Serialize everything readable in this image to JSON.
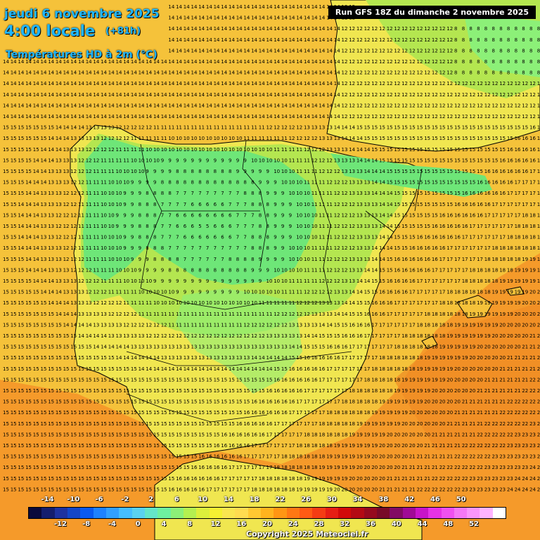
{
  "header": {
    "date": "jeudi 6 novembre 2025",
    "hour": "4:00 locale",
    "lead": "(+81h)",
    "parameter": "Températures HD à 2m (°C)",
    "run": "Run GFS 18Z du dimanche 2 novembre 2025"
  },
  "legend": {
    "upper_ticks": [
      "-14",
      "-10",
      "-6",
      "-2",
      "2",
      "6",
      "10",
      "14",
      "18",
      "22",
      "26",
      "30",
      "34",
      "38",
      "42",
      "46",
      "50"
    ],
    "lower_ticks": [
      "-12",
      "-8",
      "-4",
      "0",
      "4",
      "8",
      "12",
      "16",
      "20",
      "24",
      "28",
      "32",
      "36",
      "40",
      "44",
      "48",
      "52"
    ],
    "colors": [
      "#0a0a3c",
      "#141e6e",
      "#1e32a0",
      "#1446c8",
      "#0a5af0",
      "#1e82ff",
      "#32a0ff",
      "#46beff",
      "#5ad2f0",
      "#64e6c8",
      "#6ef0a0",
      "#8cf078",
      "#b4f050",
      "#dcf03c",
      "#f5f032",
      "#fae650",
      "#ffdc50",
      "#ffc832",
      "#ffb41e",
      "#ff9614",
      "#ff7814",
      "#ff5a14",
      "#f53c14",
      "#e61e14",
      "#d20a0a",
      "#b40a14",
      "#960a1e",
      "#780a28",
      "#820a64",
      "#a00a96",
      "#c814c8",
      "#e632e6",
      "#f050f0",
      "#f578f5",
      "#fa96fa",
      "#ffb4ff",
      "#ffffff"
    ]
  },
  "copyright": "Copyright 2025 Meteociel.fr",
  "map_layers": {
    "sea_color": "#f5c23a",
    "warm_sea_color": "#f59a2a",
    "land_warm_color": "#f0e650",
    "land_mild_color": "#b4e650",
    "land_cool_color": "#6ee678",
    "border_color": "#000000"
  }
}
